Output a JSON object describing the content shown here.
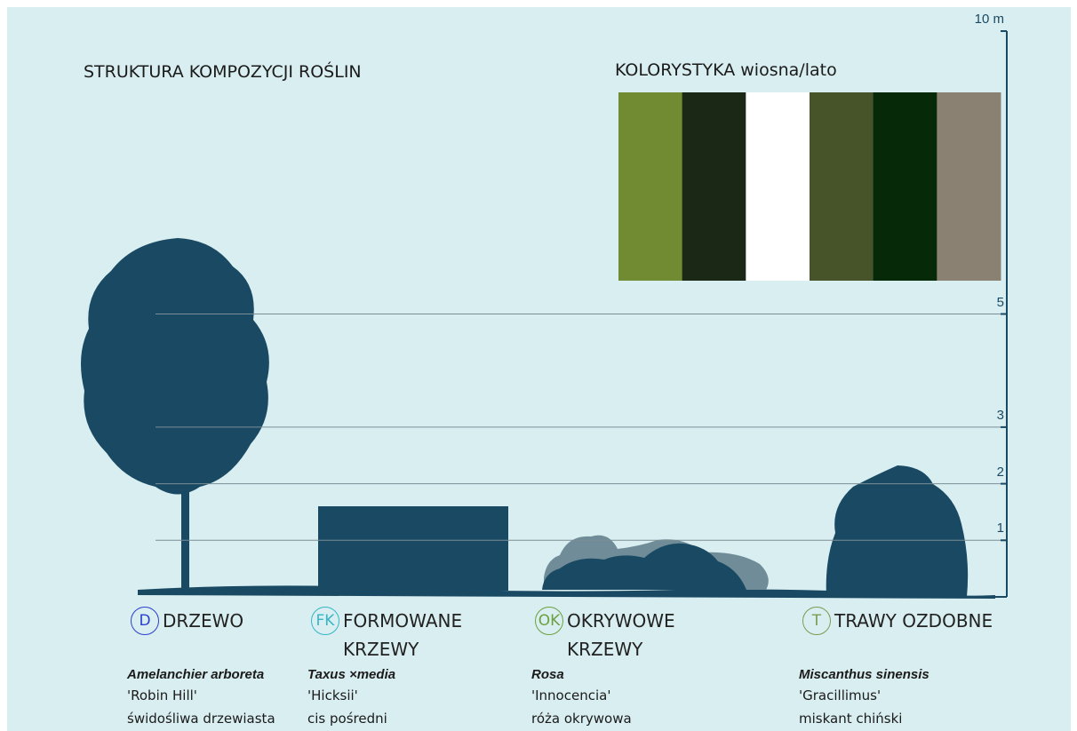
{
  "title": "STRUKTURA KOMPOZYCJI ROŚLIN",
  "palette": {
    "title": "KOLORYSTYKA wiosna/lato",
    "colors": [
      "#718b33",
      "#1c2816",
      "#ffffff",
      "#47542a",
      "#062a08",
      "#8a8173"
    ]
  },
  "scale": {
    "ticks": [
      {
        "value": 1,
        "label": "1"
      },
      {
        "value": 2,
        "label": "2"
      },
      {
        "value": 3,
        "label": "3"
      },
      {
        "value": 5,
        "label": "5"
      },
      {
        "value": 10,
        "label": "10 m"
      }
    ]
  },
  "plants": [
    {
      "code": "D",
      "code_color": "#2b3fd0",
      "group": "DRZEWO",
      "latin": "Amelanchier arboreta",
      "cultivar": "'Robin Hill'",
      "common": "świdośliwa drzewiasta"
    },
    {
      "code": "FK",
      "code_color": "#36b5c6",
      "group": "FORMOWANE KRZEWY",
      "latin": "Taxus ×media",
      "cultivar": "'Hicksii'",
      "common": "cis pośredni"
    },
    {
      "code": "OK",
      "code_color": "#6aa040",
      "group": "OKRYWOWE KRZEWY",
      "latin": "Rosa",
      "cultivar": "'Innocencia'",
      "common": "róża okrywowa"
    },
    {
      "code": "T",
      "code_color": "#7d9a52",
      "group": "TRAWY OZDOBNE",
      "latin": "Miscanthus sinensis",
      "cultivar": "'Gracillimus'",
      "common": "miskant chiński"
    }
  ]
}
